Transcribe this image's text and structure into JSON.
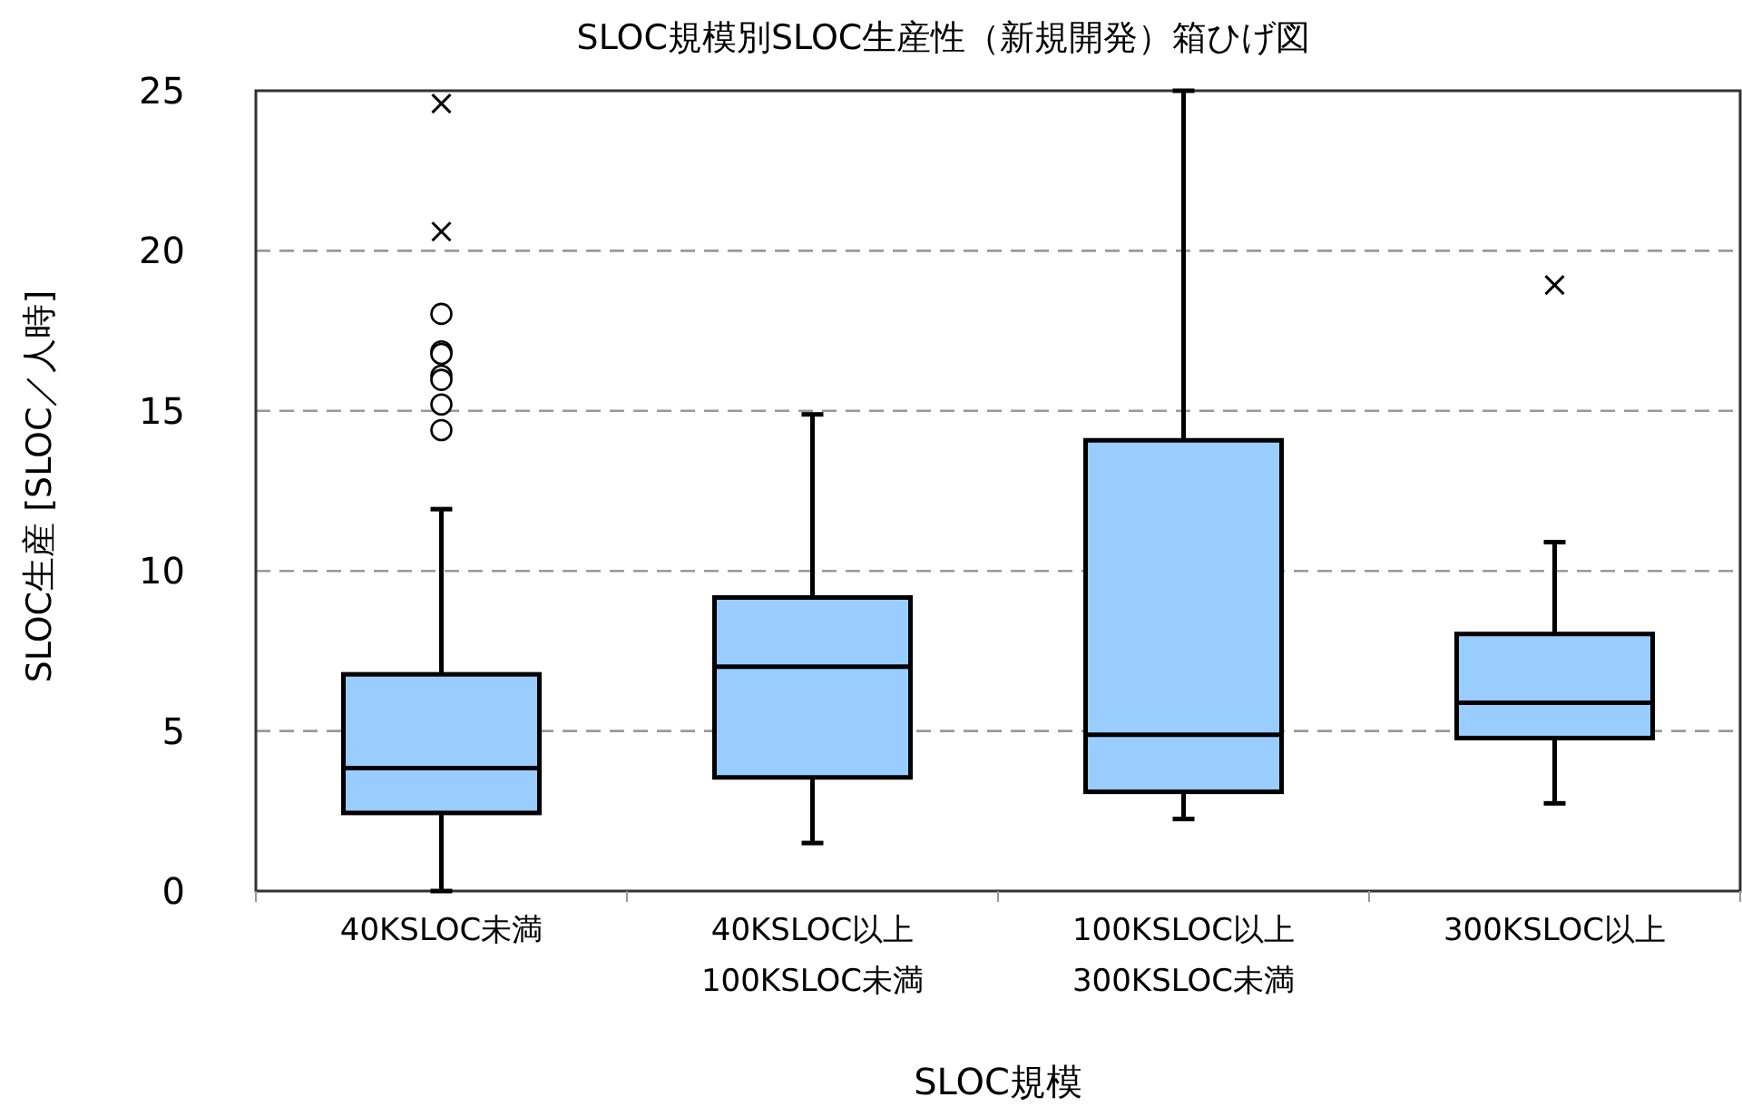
{
  "chart_data": {
    "type": "box",
    "title": "SLOC規模別SLOC生産性（新規開発）箱ひげ図",
    "xlabel": "SLOC規模",
    "ylabel": "SLOC生産 [SLOC／人時]",
    "categories": [
      "40KSLOC未満",
      "40KSLOC以上\n100KSLOC未満",
      "100KSLOC以上\n300KSLOC未満",
      "300KSLOC以上"
    ],
    "ylim": [
      0,
      25
    ],
    "yticks": [
      0,
      5,
      10,
      15,
      20,
      25
    ],
    "grid": "y",
    "series": [
      {
        "type": "box",
        "color": "#99ccff",
        "boxes": [
          {
            "low": 0,
            "q1": 2.44,
            "median": 3.84,
            "q3": 6.77,
            "high": 11.93,
            "outliers": [
              18.03,
              16.86,
              16.78,
              16.1,
              15.97,
              15.2,
              14.4
            ]
          },
          {
            "low": 1.5,
            "q1": 3.55,
            "median": 7.01,
            "q3": 9.17,
            "high": 14.89
          },
          {
            "low": 2.25,
            "q1": 3.1,
            "median": 4.88,
            "q3": 14.08,
            "high": 25
          },
          {
            "low": 2.74,
            "q1": 4.78,
            "median": 5.88,
            "q3": 8.03,
            "high": 10.9
          }
        ]
      },
      {
        "type": "scatter",
        "marker": "cross",
        "color": "#000000",
        "x": [
          "40KSLOC未満",
          "40KSLOC未満",
          "300KSLOC以上"
        ],
        "values": [
          24.6,
          20.6,
          18.93
        ]
      }
    ]
  }
}
